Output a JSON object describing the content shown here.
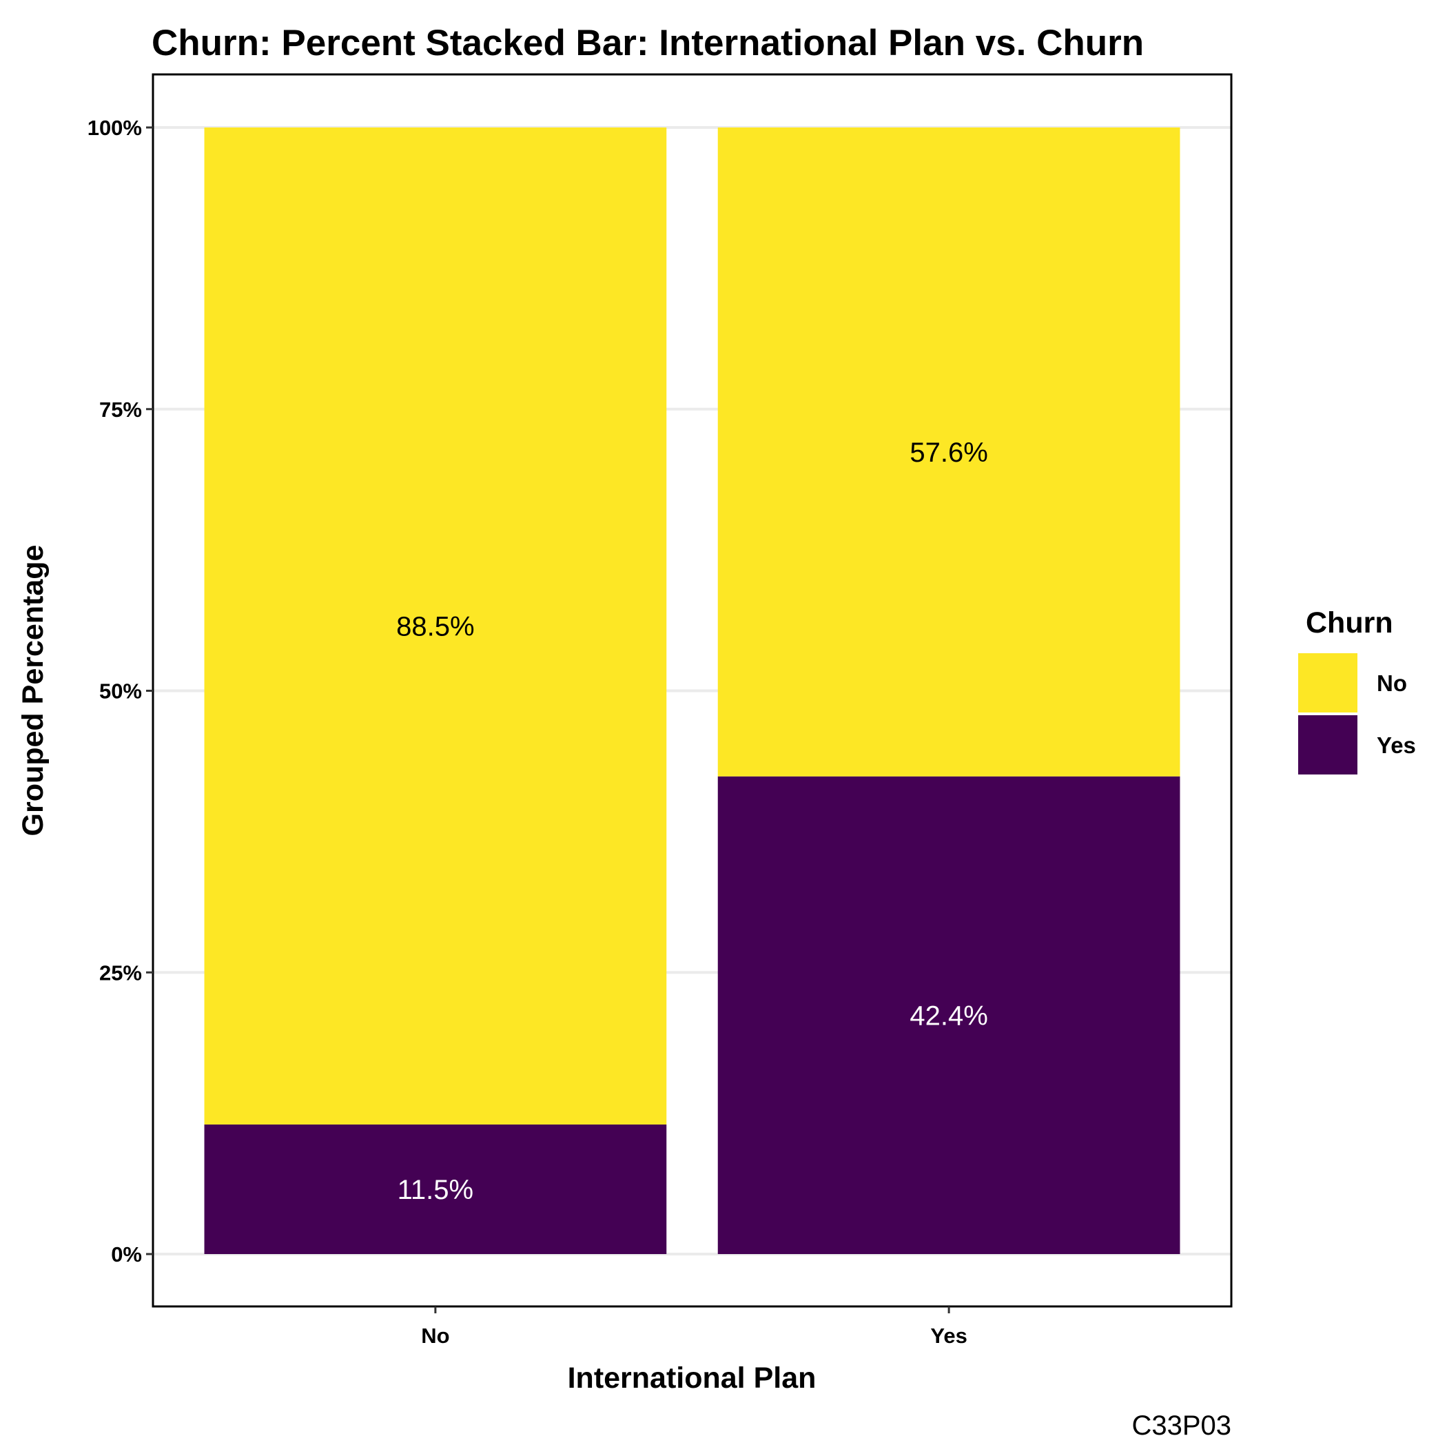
{
  "chart_data": {
    "type": "bar",
    "stacked": true,
    "percent": true,
    "title": "Churn: Percent Stacked Bar: International Plan vs. Churn",
    "xlabel": "International Plan",
    "ylabel": "Grouped Percentage",
    "categories": [
      "No",
      "Yes"
    ],
    "series": [
      {
        "name": "Yes",
        "values": [
          11.5,
          42.4
        ],
        "labels": [
          "11.5%",
          "42.4%"
        ],
        "color": "#440154",
        "label_color": "#ffffff"
      },
      {
        "name": "No",
        "values": [
          88.5,
          57.6
        ],
        "labels": [
          "88.5%",
          "57.6%"
        ],
        "color": "#FDE725",
        "label_color": "#000000"
      }
    ],
    "ylim": [
      0,
      100
    ],
    "yticks": [
      0,
      25,
      50,
      75,
      100
    ],
    "ytick_labels": [
      "0%",
      "25%",
      "50%",
      "75%",
      "100%"
    ],
    "legend": {
      "title": "Churn",
      "placement": "right",
      "entries": [
        {
          "label": "No",
          "color": "#FDE725"
        },
        {
          "label": "Yes",
          "color": "#440154"
        }
      ]
    },
    "grid": "horizontal",
    "caption": "C33P03"
  }
}
